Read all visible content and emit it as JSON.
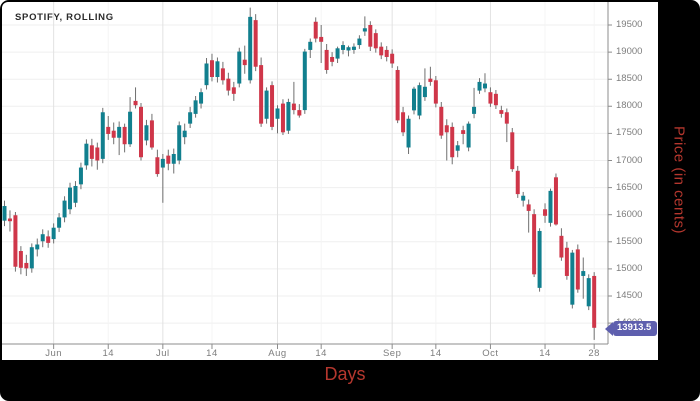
{
  "chart": {
    "title": "SPOTIFY, ROLLING",
    "x_axis_label": "Days",
    "y_axis_label": "Price (in cents)",
    "last_price_label": "13913.5"
  },
  "colors": {
    "up_candle": "#117f8e",
    "down_candle": "#cf3649",
    "wick": "#6f6f6f",
    "grid_horizontal": "#efefef",
    "grid_vertical_minor": "#f4f4f4",
    "grid_vertical_month": "#e2e2e2",
    "axis_line": "#8c8c8c",
    "tick_text": "#7d7d7d",
    "title_text": "#2b2b2b",
    "badge_bg": "#5e5fae",
    "badge_text": "#ffffff",
    "axis_title_red": "#b5372e",
    "outer_bg": "#000000",
    "panel_bg": "#ffffff"
  },
  "chart_data": {
    "type": "candlestick",
    "title": "SPOTIFY, ROLLING",
    "xlabel": "Days",
    "ylabel": "Price (in cents)",
    "legend": "none",
    "grid": true,
    "ylim": [
      13600,
      19925
    ],
    "y_ticks": [
      19500,
      19000,
      18500,
      18000,
      17500,
      17000,
      16500,
      16000,
      15500,
      15000,
      14500,
      14000
    ],
    "x_ticks": [
      {
        "label": "Jun",
        "i": 9,
        "month": true
      },
      {
        "label": "14",
        "i": 19,
        "month": false
      },
      {
        "label": "Jul",
        "i": 29,
        "month": true
      },
      {
        "label": "14",
        "i": 38,
        "month": false
      },
      {
        "label": "Aug",
        "i": 50,
        "month": true
      },
      {
        "label": "14",
        "i": 58,
        "month": false
      },
      {
        "label": "Sep",
        "i": 71,
        "month": true
      },
      {
        "label": "14",
        "i": 79,
        "month": false
      },
      {
        "label": "Oct",
        "i": 89,
        "month": true
      },
      {
        "label": "14",
        "i": 99,
        "month": false
      },
      {
        "label": "28",
        "i": 108,
        "month": false
      }
    ],
    "last_price": 13913.5,
    "candles_format": [
      "open",
      "high",
      "low",
      "close"
    ],
    "candles": [
      [
        15890,
        16260,
        15790,
        16160
      ],
      [
        15930,
        16080,
        15690,
        15880
      ],
      [
        15990,
        16050,
        14950,
        15040
      ],
      [
        15330,
        15420,
        14900,
        15020
      ],
      [
        15110,
        15260,
        14870,
        15010
      ],
      [
        15010,
        15470,
        14930,
        15400
      ],
      [
        15360,
        15560,
        15230,
        15450
      ],
      [
        15510,
        15730,
        15400,
        15640
      ],
      [
        15600,
        15710,
        15390,
        15480
      ],
      [
        15550,
        15840,
        15470,
        15760
      ],
      [
        15760,
        16030,
        15680,
        15950
      ],
      [
        15950,
        16340,
        15860,
        16260
      ],
      [
        16100,
        16590,
        16010,
        16500
      ],
      [
        16220,
        16620,
        16140,
        16530
      ],
      [
        16560,
        16960,
        16470,
        16870
      ],
      [
        16910,
        17390,
        16830,
        17310
      ],
      [
        17280,
        17400,
        16890,
        17030
      ],
      [
        17240,
        17330,
        16830,
        17000
      ],
      [
        17030,
        17970,
        16950,
        17890
      ],
      [
        17620,
        17820,
        17380,
        17490
      ],
      [
        17550,
        17700,
        17300,
        17420
      ],
      [
        17420,
        17720,
        17100,
        17620
      ],
      [
        17620,
        17680,
        17150,
        17300
      ],
      [
        17300,
        18170,
        17250,
        17900
      ],
      [
        18100,
        18350,
        17960,
        18020
      ],
      [
        17990,
        18060,
        17000,
        17060
      ],
      [
        17370,
        17750,
        17280,
        17650
      ],
      [
        17740,
        17860,
        17200,
        17240
      ],
      [
        17060,
        17200,
        16700,
        16750
      ],
      [
        16870,
        17120,
        16220,
        17030
      ],
      [
        17090,
        17200,
        16820,
        16940
      ],
      [
        16940,
        17220,
        16760,
        17120
      ],
      [
        17000,
        17720,
        16930,
        17650
      ],
      [
        17430,
        17680,
        17300,
        17550
      ],
      [
        17680,
        17990,
        17600,
        17890
      ],
      [
        17860,
        18190,
        17790,
        18110
      ],
      [
        18050,
        18330,
        17960,
        18260
      ],
      [
        18390,
        18890,
        18310,
        18790
      ],
      [
        18850,
        18970,
        18460,
        18540
      ],
      [
        18540,
        18900,
        18440,
        18830
      ],
      [
        18700,
        18820,
        18400,
        18480
      ],
      [
        18510,
        18620,
        18200,
        18290
      ],
      [
        18350,
        18450,
        18100,
        18230
      ],
      [
        18420,
        19080,
        18350,
        19010
      ],
      [
        18860,
        19120,
        18600,
        18760
      ],
      [
        18480,
        19820,
        18420,
        19650
      ],
      [
        19590,
        19700,
        18650,
        18730
      ],
      [
        18760,
        18900,
        17620,
        17680
      ],
      [
        17770,
        18350,
        17680,
        18290
      ],
      [
        18390,
        18460,
        17560,
        17620
      ],
      [
        17770,
        18020,
        17500,
        17960
      ],
      [
        18050,
        18130,
        17470,
        17520
      ],
      [
        17550,
        18140,
        17490,
        18080
      ],
      [
        18050,
        18450,
        17850,
        17930
      ],
      [
        17930,
        18040,
        17790,
        17830
      ],
      [
        17930,
        19060,
        17860,
        19010
      ],
      [
        19040,
        19250,
        18890,
        19190
      ],
      [
        19560,
        19640,
        19180,
        19250
      ],
      [
        19280,
        19500,
        18800,
        19190
      ],
      [
        19040,
        19150,
        18600,
        18670
      ],
      [
        18910,
        19000,
        18740,
        18820
      ],
      [
        18880,
        19100,
        18800,
        19070
      ],
      [
        19040,
        19200,
        18960,
        19130
      ],
      [
        19030,
        19120,
        18920,
        19090
      ],
      [
        19040,
        19160,
        18970,
        19100
      ],
      [
        19130,
        19310,
        19060,
        19250
      ],
      [
        19380,
        19660,
        19300,
        19440
      ],
      [
        19500,
        19570,
        19020,
        19100
      ],
      [
        19350,
        19420,
        18990,
        19070
      ],
      [
        19100,
        19180,
        18870,
        18940
      ],
      [
        19040,
        19110,
        18830,
        18910
      ],
      [
        18970,
        19050,
        18710,
        18790
      ],
      [
        18670,
        18740,
        17690,
        17740
      ],
      [
        17890,
        17990,
        17450,
        17520
      ],
      [
        17240,
        17830,
        17120,
        17770
      ],
      [
        17925,
        18360,
        17850,
        18325
      ],
      [
        17830,
        18440,
        17760,
        18390
      ],
      [
        18170,
        18700,
        18100,
        18360
      ],
      [
        18510,
        18730,
        18380,
        18450
      ],
      [
        18480,
        18560,
        17980,
        18050
      ],
      [
        17990,
        18080,
        17400,
        17460
      ],
      [
        17650,
        17760,
        17000,
        17520
      ],
      [
        17620,
        17700,
        16930,
        17060
      ],
      [
        17180,
        17360,
        17060,
        17280
      ],
      [
        17560,
        17640,
        17300,
        17490
      ],
      [
        17240,
        17720,
        17170,
        17680
      ],
      [
        17860,
        18340,
        17780,
        17990
      ],
      [
        18290,
        18520,
        18230,
        18450
      ],
      [
        18330,
        18610,
        18260,
        18420
      ],
      [
        18260,
        18350,
        17990,
        18050
      ],
      [
        18230,
        18300,
        17950,
        18020
      ],
      [
        17930,
        18010,
        17790,
        17860
      ],
      [
        17890,
        17960,
        17340,
        17680
      ],
      [
        17520,
        17600,
        16790,
        16840
      ],
      [
        16810,
        16900,
        16310,
        16380
      ],
      [
        16260,
        16420,
        16150,
        16350
      ],
      [
        16190,
        16280,
        15670,
        16070
      ],
      [
        16010,
        16100,
        14850,
        14900
      ],
      [
        14650,
        15750,
        14580,
        15700
      ],
      [
        16100,
        16210,
        15850,
        15980
      ],
      [
        15850,
        16480,
        15780,
        16440
      ],
      [
        16690,
        16760,
        15800,
        15820
      ],
      [
        15610,
        15750,
        15150,
        15210
      ],
      [
        15390,
        15500,
        14800,
        14870
      ],
      [
        14340,
        15350,
        14270,
        15300
      ],
      [
        15360,
        15450,
        14560,
        14620
      ],
      [
        14870,
        15210,
        14450,
        14960
      ],
      [
        14310,
        14900,
        14240,
        14830
      ],
      [
        14870,
        14940,
        13690,
        13913.5
      ]
    ]
  }
}
